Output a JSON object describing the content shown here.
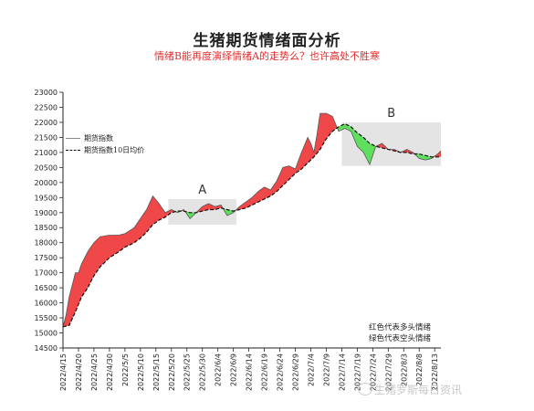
{
  "title": "生猪期货情绪面分析",
  "subtitle": "情绪B能再度演绎情绪A的走势么？也许高处不胜寒",
  "legend": [
    {
      "label": "期货指数",
      "style": "solid"
    },
    {
      "label": "期货指数10日均价",
      "style": "dashed"
    }
  ],
  "note": [
    "红色代表多头情绪",
    "绿色代表空头情绪"
  ],
  "watermark": "生猪罗斯每日资讯",
  "colors": {
    "bull": "#f04848",
    "bear": "#5ee05e",
    "index_line": "#555555",
    "ma_line": "#111111",
    "box": "#e4e4e4"
  },
  "chart_data": {
    "type": "area",
    "title": "生猪期货情绪面分析",
    "ylim": [
      14500,
      23000
    ],
    "yticks": [
      14500,
      15000,
      15500,
      16000,
      16500,
      17000,
      17500,
      18000,
      18500,
      19000,
      19500,
      20000,
      20500,
      21000,
      21500,
      22000,
      22500,
      23000
    ],
    "xticks": [
      "2022/4/15",
      "2022/4/20",
      "2022/4/25",
      "2022/4/30",
      "2022/5/5",
      "2022/5/10",
      "2022/5/15",
      "2022/5/20",
      "2022/5/25",
      "2022/5/30",
      "2022/6/4",
      "2022/6/9",
      "2022/6/14",
      "2022/6/19",
      "2022/6/24",
      "2022/6/29",
      "2022/7/4",
      "2022/7/9",
      "2022/7/14",
      "2022/7/19",
      "2022/7/24",
      "2022/7/29",
      "2022/8/3",
      "2022/8/8",
      "2022/8/13"
    ],
    "start_date": "2022-04-15",
    "end_date": "2022-08-15",
    "series": [
      {
        "name": "期货指数",
        "points": [
          [
            "2022-04-15",
            15200
          ],
          [
            "2022-04-16",
            15600
          ],
          [
            "2022-04-17",
            16200
          ],
          [
            "2022-04-18",
            16600
          ],
          [
            "2022-04-19",
            17000
          ],
          [
            "2022-04-20",
            17000
          ],
          [
            "2022-04-21",
            17300
          ],
          [
            "2022-04-23",
            17700
          ],
          [
            "2022-04-25",
            18000
          ],
          [
            "2022-04-27",
            18200
          ],
          [
            "2022-04-30",
            18250
          ],
          [
            "2022-05-03",
            18250
          ],
          [
            "2022-05-05",
            18300
          ],
          [
            "2022-05-08",
            18500
          ],
          [
            "2022-05-10",
            18800
          ],
          [
            "2022-05-12",
            19100
          ],
          [
            "2022-05-14",
            19550
          ],
          [
            "2022-05-16",
            19300
          ],
          [
            "2022-05-18",
            19000
          ],
          [
            "2022-05-20",
            19100
          ],
          [
            "2022-05-22",
            19000
          ],
          [
            "2022-05-24",
            19100
          ],
          [
            "2022-05-26",
            18800
          ],
          [
            "2022-05-28",
            19000
          ],
          [
            "2022-05-30",
            19200
          ],
          [
            "2022-06-01",
            19300
          ],
          [
            "2022-06-03",
            19200
          ],
          [
            "2022-06-05",
            19250
          ],
          [
            "2022-06-07",
            18900
          ],
          [
            "2022-06-09",
            19000
          ],
          [
            "2022-06-11",
            19200
          ],
          [
            "2022-06-13",
            19350
          ],
          [
            "2022-06-15",
            19500
          ],
          [
            "2022-06-17",
            19700
          ],
          [
            "2022-06-19",
            19850
          ],
          [
            "2022-06-21",
            19750
          ],
          [
            "2022-06-23",
            20050
          ],
          [
            "2022-06-25",
            20500
          ],
          [
            "2022-06-27",
            20550
          ],
          [
            "2022-06-29",
            20450
          ],
          [
            "2022-07-01",
            21000
          ],
          [
            "2022-07-03",
            21500
          ],
          [
            "2022-07-04",
            21300
          ],
          [
            "2022-07-05",
            21000
          ],
          [
            "2022-07-06",
            21600
          ],
          [
            "2022-07-07",
            22300
          ],
          [
            "2022-07-09",
            22300
          ],
          [
            "2022-07-11",
            22200
          ],
          [
            "2022-07-13",
            21700
          ],
          [
            "2022-07-15",
            21800
          ],
          [
            "2022-07-17",
            21700
          ],
          [
            "2022-07-19",
            21200
          ],
          [
            "2022-07-21",
            21000
          ],
          [
            "2022-07-23",
            20600
          ],
          [
            "2022-07-25",
            21200
          ],
          [
            "2022-07-27",
            21300
          ],
          [
            "2022-07-29",
            21100
          ],
          [
            "2022-07-31",
            21100
          ],
          [
            "2022-08-02",
            21000
          ],
          [
            "2022-08-04",
            21100
          ],
          [
            "2022-08-06",
            21000
          ],
          [
            "2022-08-08",
            20800
          ],
          [
            "2022-08-10",
            20750
          ],
          [
            "2022-08-12",
            20800
          ],
          [
            "2022-08-14",
            20950
          ],
          [
            "2022-08-15",
            21050
          ]
        ]
      },
      {
        "name": "期货指数10日均价",
        "points": [
          [
            "2022-04-15",
            15200
          ],
          [
            "2022-04-17",
            15250
          ],
          [
            "2022-04-19",
            15700
          ],
          [
            "2022-04-21",
            16200
          ],
          [
            "2022-04-23",
            16500
          ],
          [
            "2022-04-25",
            16900
          ],
          [
            "2022-04-27",
            17200
          ],
          [
            "2022-04-30",
            17500
          ],
          [
            "2022-05-03",
            17700
          ],
          [
            "2022-05-05",
            17850
          ],
          [
            "2022-05-08",
            18000
          ],
          [
            "2022-05-10",
            18150
          ],
          [
            "2022-05-12",
            18350
          ],
          [
            "2022-05-14",
            18600
          ],
          [
            "2022-05-16",
            18750
          ],
          [
            "2022-05-18",
            18850
          ],
          [
            "2022-05-20",
            19000
          ],
          [
            "2022-05-22",
            19050
          ],
          [
            "2022-05-24",
            19050
          ],
          [
            "2022-05-26",
            19000
          ],
          [
            "2022-05-28",
            19000
          ],
          [
            "2022-05-30",
            19050
          ],
          [
            "2022-06-01",
            19100
          ],
          [
            "2022-06-03",
            19100
          ],
          [
            "2022-06-05",
            19150
          ],
          [
            "2022-06-07",
            19100
          ],
          [
            "2022-06-09",
            19050
          ],
          [
            "2022-06-11",
            19100
          ],
          [
            "2022-06-13",
            19150
          ],
          [
            "2022-06-15",
            19250
          ],
          [
            "2022-06-17",
            19350
          ],
          [
            "2022-06-19",
            19450
          ],
          [
            "2022-06-21",
            19550
          ],
          [
            "2022-06-23",
            19700
          ],
          [
            "2022-06-25",
            19900
          ],
          [
            "2022-06-27",
            20100
          ],
          [
            "2022-06-29",
            20300
          ],
          [
            "2022-07-01",
            20450
          ],
          [
            "2022-07-03",
            20650
          ],
          [
            "2022-07-05",
            20850
          ],
          [
            "2022-07-07",
            21100
          ],
          [
            "2022-07-09",
            21450
          ],
          [
            "2022-07-11",
            21700
          ],
          [
            "2022-07-13",
            21850
          ],
          [
            "2022-07-15",
            21950
          ],
          [
            "2022-07-17",
            21850
          ],
          [
            "2022-07-19",
            21650
          ],
          [
            "2022-07-21",
            21500
          ],
          [
            "2022-07-23",
            21300
          ],
          [
            "2022-07-25",
            21200
          ],
          [
            "2022-07-27",
            21150
          ],
          [
            "2022-07-29",
            21100
          ],
          [
            "2022-07-31",
            21050
          ],
          [
            "2022-08-02",
            21000
          ],
          [
            "2022-08-04",
            21000
          ],
          [
            "2022-08-06",
            20950
          ],
          [
            "2022-08-08",
            20950
          ],
          [
            "2022-08-10",
            20900
          ],
          [
            "2022-08-12",
            20850
          ],
          [
            "2022-08-14",
            20850
          ],
          [
            "2022-08-15",
            20850
          ]
        ]
      }
    ],
    "annotations": [
      {
        "label": "A",
        "x_range": [
          "2022-05-19",
          "2022-06-10"
        ],
        "y_range": [
          18600,
          19450
        ]
      },
      {
        "label": "B",
        "x_range": [
          "2022-07-14",
          "2022-08-15"
        ],
        "y_range": [
          20550,
          22000
        ]
      }
    ],
    "legend_position": "left",
    "grid": false
  }
}
